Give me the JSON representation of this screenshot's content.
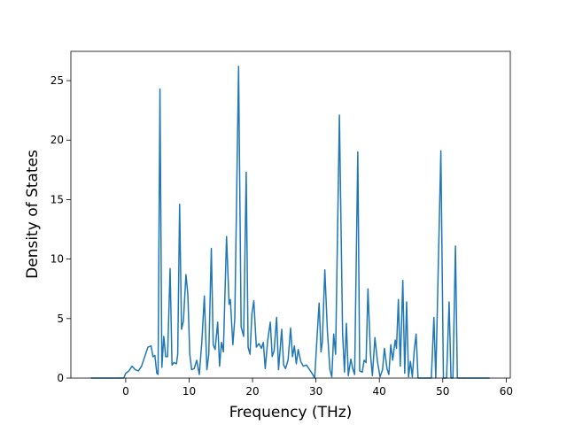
{
  "chart_data": {
    "type": "line",
    "xlabel": "Frequency (THz)",
    "ylabel": "Density of States",
    "color": "#1f77b4",
    "x": [
      -5.5,
      -0.3,
      0,
      0.5,
      1,
      1.5,
      2,
      2.5,
      3,
      3.5,
      4,
      4.3,
      4.6,
      4.9,
      5.1,
      5.4,
      5.7,
      6,
      6.3,
      6.6,
      7,
      7.3,
      7.6,
      8,
      8.2,
      8.5,
      8.8,
      9.1,
      9.5,
      9.8,
      10.1,
      10.4,
      10.8,
      11.2,
      11.6,
      12,
      12.4,
      12.8,
      13.1,
      13.5,
      13.8,
      14.1,
      14.5,
      14.8,
      15.1,
      15.4,
      15.9,
      16.3,
      16.5,
      16.9,
      17.2,
      17.8,
      18.2,
      18.6,
      19,
      19.3,
      19.6,
      19.9,
      20.2,
      20.6,
      21,
      21.4,
      21.7,
      22,
      22.4,
      22.8,
      23.1,
      23.4,
      23.8,
      24.1,
      24.6,
      24.9,
      25.2,
      25.6,
      26,
      26.3,
      26.6,
      26.9,
      27.2,
      27.6,
      28,
      28.5,
      29,
      29.5,
      29.8,
      30.1,
      30.5,
      30.8,
      31,
      31.4,
      31.8,
      32.2,
      32.5,
      32.8,
      33.1,
      33.7,
      34.2,
      34.5,
      34.8,
      35.1,
      35.5,
      35.8,
      36.1,
      36.6,
      36.9,
      37.3,
      37.6,
      37.9,
      38.2,
      38.6,
      38.9,
      39.3,
      39.7,
      40.1,
      40.5,
      40.8,
      41.2,
      41.5,
      41.8,
      42.1,
      42.5,
      42.7,
      43,
      43.3,
      43.7,
      44,
      44.3,
      44.6,
      44.9,
      45.2,
      45.5,
      45.8,
      46.1,
      48.2,
      48.6,
      48.9,
      49.7,
      50.1,
      50.6,
      51,
      51.3,
      51.6,
      52,
      52.3,
      57.4
    ],
    "values": [
      0,
      0,
      0.4,
      0.6,
      1.0,
      0.7,
      0.6,
      1.0,
      1.8,
      2.6,
      2.7,
      1.8,
      1.9,
      0.4,
      0.3,
      24.3,
      0.9,
      3.5,
      1.8,
      1.8,
      9.2,
      1.1,
      1.3,
      1.2,
      2.0,
      14.6,
      4.1,
      4.8,
      8.7,
      7.0,
      2.0,
      0.7,
      0.8,
      1.5,
      0.3,
      3.0,
      6.9,
      0.7,
      2.0,
      10.9,
      2.8,
      2.4,
      4.7,
      1.0,
      3.0,
      2.2,
      11.9,
      6.2,
      6.6,
      2.8,
      5.0,
      26.2,
      4.3,
      3.5,
      17.3,
      2.6,
      2.0,
      5.4,
      6.5,
      2.6,
      2.9,
      2.5,
      3.0,
      0.8,
      3.2,
      4.7,
      1.8,
      2.3,
      5.1,
      0.7,
      4.1,
      1.1,
      0.8,
      1.5,
      4.2,
      1.8,
      2.7,
      1.2,
      2.4,
      1.4,
      1.0,
      1.1,
      0.7,
      0.3,
      0,
      2.8,
      6.3,
      2.2,
      3.0,
      9.1,
      4.0,
      0.7,
      0.1,
      3.7,
      2.0,
      22.1,
      3.8,
      0.5,
      4.6,
      0.2,
      1.6,
      0.8,
      0.3,
      19.0,
      0.6,
      0.5,
      1.5,
      1.3,
      7.5,
      2.0,
      0.2,
      3.4,
      1.4,
      0.1,
      0.7,
      2.5,
      0.8,
      0.3,
      2.8,
      1.5,
      3.2,
      2.5,
      6.6,
      1.0,
      8.2,
      0.4,
      6.4,
      0.1,
      1.4,
      0.1,
      2.3,
      3.7,
      0,
      0,
      5.1,
      0,
      19.1,
      0,
      0,
      6.4,
      0,
      0,
      11.1,
      0,
      0
    ],
    "xlim": [
      -8.65,
      60.65
    ],
    "xticks": [
      0,
      10,
      20,
      30,
      40,
      50,
      60
    ],
    "ylim": [
      0,
      27.46
    ],
    "yticks": [
      0,
      5,
      10,
      15,
      20,
      25
    ]
  }
}
